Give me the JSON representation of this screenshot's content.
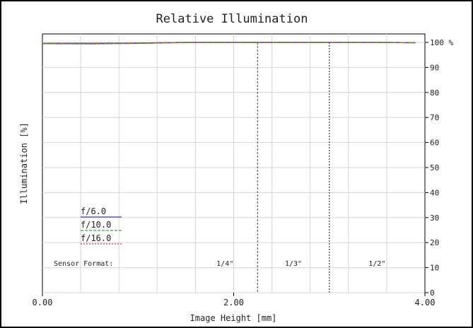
{
  "chart_data": {
    "type": "line",
    "title": "Relative Illumination",
    "xlabel": "Image Height [mm]",
    "ylabel": "Illumination [%]",
    "xlim": [
      0,
      4
    ],
    "ylim": [
      0,
      100
    ],
    "x_ticks": [
      "0.00",
      "2.00",
      "4.00"
    ],
    "y_ticks": [
      "0",
      "10",
      "20",
      "30",
      "40",
      "50",
      "60",
      "70",
      "80",
      "90",
      "100 %"
    ],
    "grid": true,
    "series": [
      {
        "name": "f/6.0",
        "color": "#3d3dbb",
        "x": [
          0,
          0.5,
          1.0,
          1.3,
          1.6,
          2.0,
          2.5,
          3.0,
          3.5,
          3.9
        ],
        "y": [
          99.6,
          99.6,
          99.7,
          99.9,
          100,
          100,
          100,
          100,
          100,
          99.9
        ]
      },
      {
        "name": "f/10.0",
        "color": "#33aa33",
        "x": [
          0,
          0.5,
          1.0,
          1.3,
          1.6,
          2.0,
          2.5,
          3.0,
          3.5,
          3.9
        ],
        "y": [
          99.5,
          99.4,
          99.6,
          99.9,
          100,
          100,
          100,
          100,
          100,
          99.9
        ]
      },
      {
        "name": "f/16.0",
        "color": "#cc4444",
        "x": [
          0,
          0.5,
          1.0,
          1.3,
          1.6,
          2.0,
          2.5,
          3.0,
          3.5,
          3.9
        ],
        "y": [
          99.6,
          99.5,
          99.7,
          99.9,
          100,
          100,
          100,
          100,
          100,
          99.9
        ]
      }
    ],
    "sensor_format_label": "Sensor Format:",
    "sensor_formats": [
      {
        "label": "1/4\"",
        "x": 2.25,
        "line_style": "dashed"
      },
      {
        "label": "1/3\"",
        "x": 3.0,
        "line_style": "dotted"
      },
      {
        "label": "1/2\"",
        "x": 4.0,
        "line_style": "none"
      }
    ]
  }
}
